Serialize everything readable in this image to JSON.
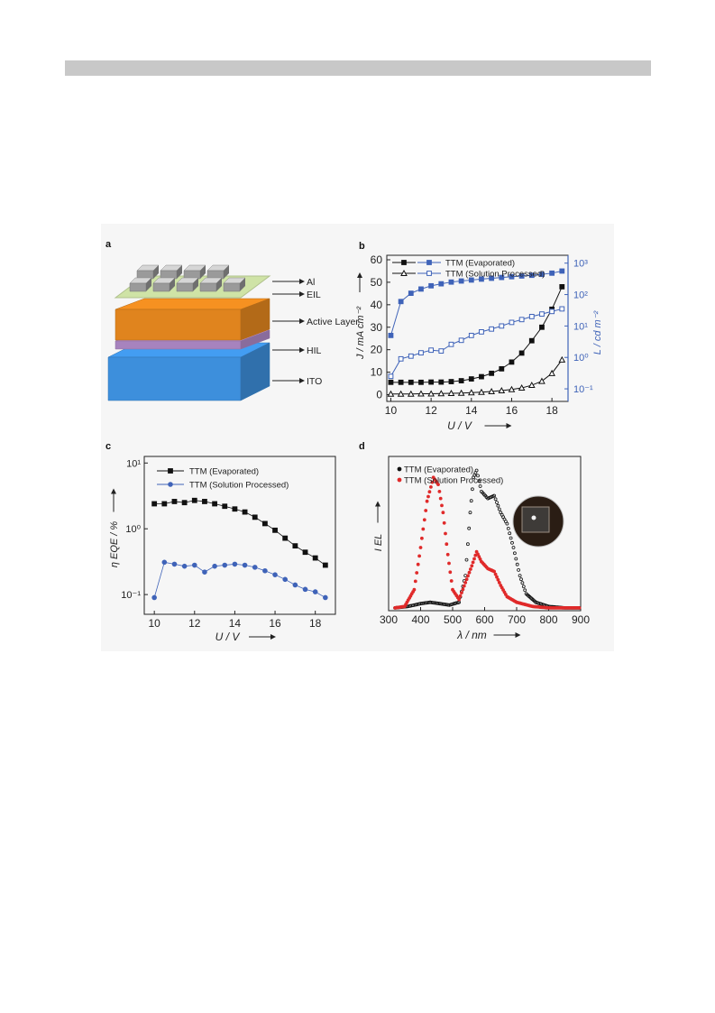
{
  "panels": {
    "a": {
      "letter": "a",
      "layers": [
        "Al",
        "EIL",
        "Active Layer",
        "HIL",
        "ITO"
      ],
      "colors": {
        "al": "#9a9a9a",
        "eil": "#cfe3a6",
        "active": "#e0841e",
        "hil": "#b08ac8",
        "ito": "#3d8fdc"
      }
    },
    "b": {
      "letter": "b"
    },
    "c": {
      "letter": "c"
    },
    "d": {
      "letter": "d"
    }
  },
  "chart_data": [
    {
      "panel": "b",
      "type": "line",
      "x": [
        10,
        10.5,
        11,
        11.5,
        12,
        12.5,
        13,
        13.5,
        14,
        14.5,
        15,
        15.5,
        16,
        16.5,
        17,
        17.5,
        18,
        18.5
      ],
      "xlabel": "U / V",
      "ylabel": "J / mA cm⁻²",
      "ylabel_right": "L / cd m⁻²",
      "xlim": [
        9.8,
        18.8
      ],
      "ylim": [
        -3,
        62
      ],
      "ylim_right_log10": [
        -1.4,
        3.25
      ],
      "x_ticks": [
        10,
        12,
        14,
        16,
        18
      ],
      "y_ticks": [
        0,
        10,
        20,
        30,
        40,
        50,
        60
      ],
      "y_right_ticks": [
        "10⁻¹",
        "10⁰",
        "10¹",
        "10²",
        "10³"
      ],
      "series": [
        {
          "name": "TTM (Evaporated)",
          "axis": "left",
          "filled": true,
          "color": "#111111",
          "values": [
            5.5,
            5.5,
            5.5,
            5.5,
            5.6,
            5.6,
            5.8,
            6.2,
            7.0,
            8.0,
            9.5,
            11.5,
            14.5,
            18.5,
            24,
            30,
            38,
            48
          ]
        },
        {
          "name": "TTM (Solution Processed)",
          "axis": "left",
          "filled": false,
          "color": "#111111",
          "values": [
            0.3,
            0.3,
            0.3,
            0.4,
            0.4,
            0.5,
            0.6,
            0.7,
            0.9,
            1.1,
            1.4,
            1.8,
            2.3,
            3.0,
            4.2,
            6.0,
            9.5,
            15.5
          ]
        },
        {
          "name": "TTM (Evaporated) L",
          "axis": "right",
          "filled": true,
          "color": "#3f63b8",
          "values": [
            5,
            60,
            110,
            150,
            190,
            220,
            250,
            270,
            290,
            310,
            330,
            350,
            370,
            390,
            410,
            440,
            480,
            560
          ]
        },
        {
          "name": "TTM (Solution Processed) L",
          "axis": "right",
          "filled": false,
          "color": "#3f63b8",
          "values": [
            0.25,
            0.9,
            1.1,
            1.4,
            1.7,
            1.6,
            2.6,
            3.5,
            5,
            6.5,
            8,
            10,
            13,
            16,
            20,
            24,
            29,
            35
          ]
        }
      ]
    },
    {
      "panel": "c",
      "type": "line",
      "x": [
        10,
        10.5,
        11,
        11.5,
        12,
        12.5,
        13,
        13.5,
        14,
        14.5,
        15,
        15.5,
        16,
        16.5,
        17,
        17.5,
        18,
        18.5
      ],
      "xlabel": "U / V",
      "ylabel": "η EQE / %",
      "xlim": [
        9.5,
        19
      ],
      "ylim_log10": [
        -1.3,
        1.1
      ],
      "x_ticks": [
        10,
        12,
        14,
        16,
        18
      ],
      "y_ticks": [
        "10⁻¹",
        "10⁰",
        "10¹"
      ],
      "series": [
        {
          "name": "TTM (Evaporated)",
          "color": "#111111",
          "values": [
            2.4,
            2.4,
            2.6,
            2.5,
            2.7,
            2.6,
            2.4,
            2.2,
            2.0,
            1.8,
            1.5,
            1.2,
            0.95,
            0.72,
            0.55,
            0.44,
            0.36,
            0.28
          ]
        },
        {
          "name": "TTM (Solution Processed)",
          "color": "#3f63b8",
          "values": [
            0.09,
            0.31,
            0.29,
            0.27,
            0.28,
            0.22,
            0.27,
            0.28,
            0.29,
            0.28,
            0.26,
            0.23,
            0.2,
            0.17,
            0.14,
            0.12,
            0.11,
            0.09
          ]
        }
      ]
    },
    {
      "panel": "d",
      "type": "scatter",
      "xlabel": "λ / nm",
      "ylabel": "I EL",
      "xlim": [
        300,
        900
      ],
      "ylim": [
        0,
        1.1
      ],
      "x_ticks": [
        300,
        400,
        500,
        600,
        700,
        800,
        900
      ],
      "series": [
        {
          "name": "TTM (Evaporated)",
          "color": "#111111",
          "points": [
            [
              320,
              0.02
            ],
            [
              360,
              0.03
            ],
            [
              400,
              0.05
            ],
            [
              430,
              0.06
            ],
            [
              460,
              0.05
            ],
            [
              490,
              0.04
            ],
            [
              520,
              0.06
            ],
            [
              540,
              0.25
            ],
            [
              555,
              0.7
            ],
            [
              565,
              0.95
            ],
            [
              575,
              1.0
            ],
            [
              590,
              0.85
            ],
            [
              610,
              0.8
            ],
            [
              630,
              0.82
            ],
            [
              650,
              0.7
            ],
            [
              670,
              0.62
            ],
            [
              690,
              0.45
            ],
            [
              710,
              0.25
            ],
            [
              730,
              0.12
            ],
            [
              760,
              0.06
            ],
            [
              800,
              0.03
            ],
            [
              850,
              0.02
            ],
            [
              900,
              0.02
            ]
          ]
        },
        {
          "name": "TTM (Solution Processed)",
          "color": "#e02a2a",
          "points": [
            [
              320,
              0.02
            ],
            [
              350,
              0.03
            ],
            [
              380,
              0.15
            ],
            [
              400,
              0.45
            ],
            [
              420,
              0.78
            ],
            [
              440,
              0.95
            ],
            [
              455,
              0.9
            ],
            [
              470,
              0.7
            ],
            [
              485,
              0.4
            ],
            [
              500,
              0.15
            ],
            [
              520,
              0.08
            ],
            [
              540,
              0.2
            ],
            [
              560,
              0.32
            ],
            [
              575,
              0.42
            ],
            [
              590,
              0.35
            ],
            [
              610,
              0.3
            ],
            [
              630,
              0.28
            ],
            [
              650,
              0.18
            ],
            [
              670,
              0.1
            ],
            [
              700,
              0.06
            ],
            [
              750,
              0.03
            ],
            [
              800,
              0.02
            ],
            [
              900,
              0.02
            ]
          ]
        }
      ]
    }
  ]
}
